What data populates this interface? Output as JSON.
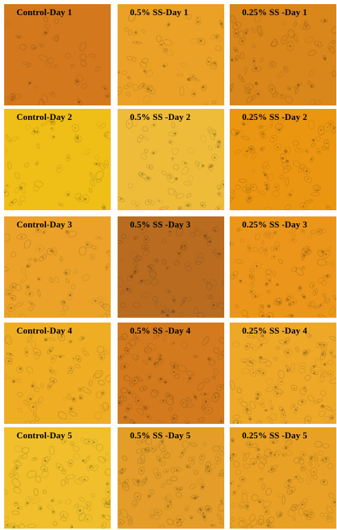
{
  "figure": {
    "rows": [
      {
        "panels": [
          {
            "label": "Control-Day 1",
            "tint": "#d97c1e"
          },
          {
            "label": "0.5% SS-Day 1",
            "tint": "#f2a627"
          },
          {
            "label": "0.25% SS -Day 1",
            "tint": "#e08a1c"
          }
        ]
      },
      {
        "panels": [
          {
            "label": "Control-Day 2",
            "tint": "#f6c418"
          },
          {
            "label": "0.5% SS -Day 2",
            "tint": "#f6c13c"
          },
          {
            "label": "0.25% SS -Day 2",
            "tint": "#f29a12"
          }
        ]
      },
      {
        "panels": [
          {
            "label": "Control-Day 3",
            "tint": "#f3a72a"
          },
          {
            "label": "0.5% SS -Day 3",
            "tint": "#bf7022"
          },
          {
            "label": "0.25% SS -Day 3",
            "tint": "#f29a1c"
          }
        ]
      },
      {
        "panels": [
          {
            "label": "Control-Day 4",
            "tint": "#f6b225"
          },
          {
            "label": "0.5% SS -Day 4",
            "tint": "#d87e1e"
          },
          {
            "label": "0.25% SS -Day 4",
            "tint": "#f5ad2a"
          }
        ]
      },
      {
        "panels": [
          {
            "label": "Control-Day 5",
            "tint": "#f7c52c"
          },
          {
            "label": "0.5% SS -Day 5",
            "tint": "#e9a22a"
          },
          {
            "label": "0.25% SS -Day 5",
            "tint": "#f0a626"
          }
        ]
      }
    ]
  }
}
